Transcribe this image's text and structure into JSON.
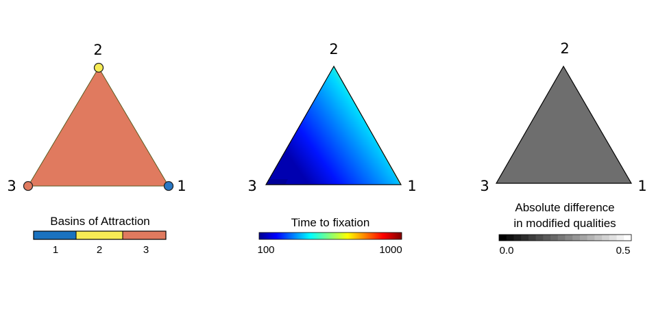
{
  "panels": [
    {
      "id": "basins",
      "vertex_labels": {
        "top": "2",
        "left": "3",
        "right": "1"
      },
      "fill_color": "#e07a5f",
      "vertex_points": [
        {
          "vertex": "2",
          "color": "#f7ec55"
        },
        {
          "vertex": "3",
          "color": "#e07a5f"
        },
        {
          "vertex": "1",
          "color": "#2a78c4"
        }
      ],
      "colorbar": {
        "title": "Basins of Attraction",
        "segments": [
          {
            "label": "1",
            "color": "#1a72bf"
          },
          {
            "label": "2",
            "color": "#f7ec55"
          },
          {
            "label": "3",
            "color": "#e07a5f"
          }
        ]
      }
    },
    {
      "id": "fixation",
      "vertex_labels": {
        "top": "2",
        "left": "3",
        "right": "1"
      },
      "colorbar": {
        "title": "Time to fixation",
        "min_label": "100",
        "max_label": "1000",
        "colormap": "jet"
      }
    },
    {
      "id": "difference",
      "vertex_labels": {
        "top": "2",
        "left": "3",
        "right": "1"
      },
      "fill_color": "#6e6e6e",
      "colorbar": {
        "title_line1": "Absolute difference",
        "title_line2": "in modified qualities",
        "min_label": "0.0",
        "max_label": "0.5",
        "colormap": "gray",
        "steps": 18
      }
    }
  ]
}
